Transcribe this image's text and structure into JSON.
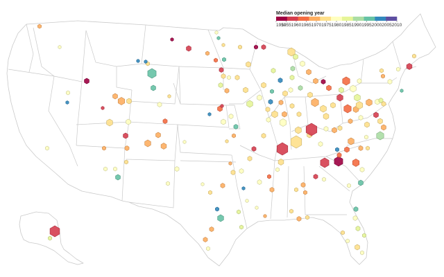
{
  "legend": {
    "title": "Median opening year",
    "ticks": [
      "1950",
      "1955",
      "1960",
      "1965",
      "1970",
      "1975",
      "1980",
      "1985",
      "1990",
      "1995",
      "2000",
      "2005",
      "2010"
    ],
    "colors": [
      "#9e0142",
      "#d53e4f",
      "#f46d43",
      "#fdae61",
      "#fee08b",
      "#ffffbf",
      "#e6f598",
      "#abdda4",
      "#66c2a5",
      "#3288bd",
      "#5e4fa2"
    ]
  },
  "colors": {
    "state_fill": "#ffffff",
    "state_border": "#c9c9c9"
  }
}
